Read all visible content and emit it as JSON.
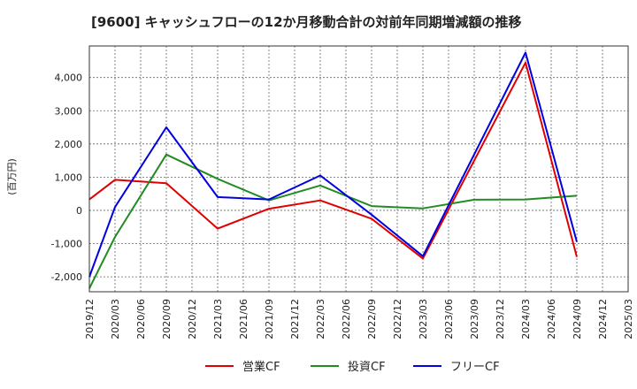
{
  "chart_data": {
    "type": "line",
    "title": "[9600]  キャッシュフローの12か月移動合計の対前年同期増減額の推移",
    "ylabel": "(百万円)",
    "xlabel": "",
    "ylim": [
      -2450,
      4950
    ],
    "y_ticks": [
      -2000,
      -1000,
      0,
      1000,
      2000,
      3000,
      4000
    ],
    "y_tick_labels": [
      "-2,000",
      "-1,000",
      "0",
      "1,000",
      "2,000",
      "3,000",
      "4,000"
    ],
    "x_categories": [
      "2019/12",
      "2020/03",
      "2020/06",
      "2020/09",
      "2020/12",
      "2021/03",
      "2021/06",
      "2021/09",
      "2021/12",
      "2022/03",
      "2022/06",
      "2022/09",
      "2022/12",
      "2023/03",
      "2023/06",
      "2023/09",
      "2023/12",
      "2024/03",
      "2024/06",
      "2024/09",
      "2024/12",
      "2025/03"
    ],
    "grid": true,
    "legend_position": "bottom",
    "series": [
      {
        "name": "営業CF",
        "color": "#e00000",
        "points": [
          {
            "x": "2019/12",
            "y": 330
          },
          {
            "x": "2020/03",
            "y": 920
          },
          {
            "x": "2020/09",
            "y": 820
          },
          {
            "x": "2021/03",
            "y": -550
          },
          {
            "x": "2021/09",
            "y": 50
          },
          {
            "x": "2022/03",
            "y": 300
          },
          {
            "x": "2022/09",
            "y": -250
          },
          {
            "x": "2023/03",
            "y": -1450
          },
          {
            "x": "2024/03",
            "y": 4450
          },
          {
            "x": "2024/09",
            "y": -1400
          }
        ]
      },
      {
        "name": "投資CF",
        "color": "#228b22",
        "points": [
          {
            "x": "2019/12",
            "y": -2350
          },
          {
            "x": "2020/03",
            "y": -800
          },
          {
            "x": "2020/09",
            "y": 1680
          },
          {
            "x": "2021/03",
            "y": 950
          },
          {
            "x": "2021/09",
            "y": 300
          },
          {
            "x": "2022/03",
            "y": 750
          },
          {
            "x": "2022/09",
            "y": 130
          },
          {
            "x": "2023/03",
            "y": 60
          },
          {
            "x": "2023/09",
            "y": 320
          },
          {
            "x": "2024/03",
            "y": 330
          },
          {
            "x": "2024/09",
            "y": 440
          }
        ]
      },
      {
        "name": "フリーCF",
        "color": "#0000e0",
        "points": [
          {
            "x": "2019/12",
            "y": -2000
          },
          {
            "x": "2020/03",
            "y": 100
          },
          {
            "x": "2020/09",
            "y": 2500
          },
          {
            "x": "2021/03",
            "y": 400
          },
          {
            "x": "2021/09",
            "y": 330
          },
          {
            "x": "2022/03",
            "y": 1050
          },
          {
            "x": "2022/09",
            "y": -130
          },
          {
            "x": "2023/03",
            "y": -1380
          },
          {
            "x": "2024/03",
            "y": 4750
          },
          {
            "x": "2024/09",
            "y": -950
          }
        ]
      }
    ]
  }
}
